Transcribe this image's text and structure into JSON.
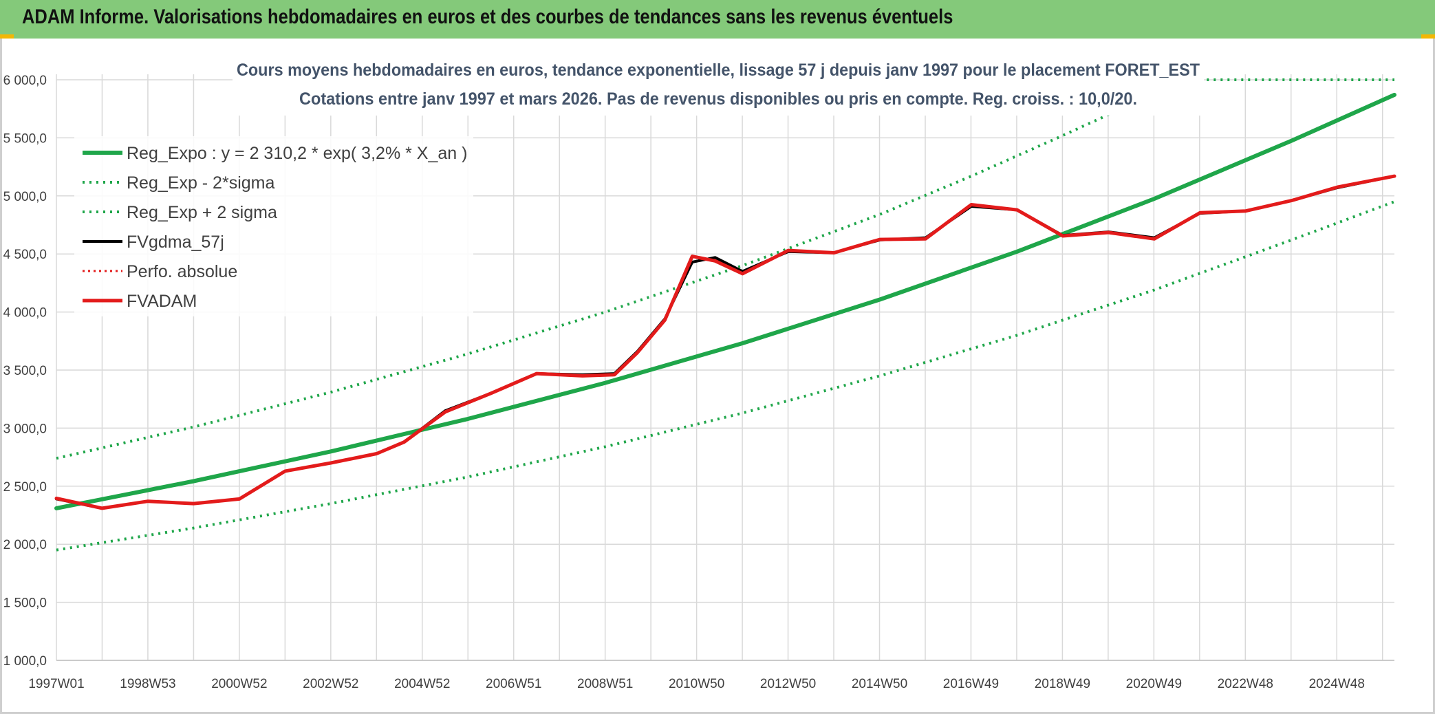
{
  "header": {
    "title": "ADAM Informe. Valorisations hebdomadaires en euros et des courbes de tendances sans les revenus éventuels"
  },
  "colors": {
    "header_bg": "#84c97a",
    "regression": "#1fa64a",
    "band": "#1fa64a",
    "fvgdma": "#000000",
    "perfo": "#e31b1b",
    "fvadam": "#e31b1b",
    "gridline": "#d9d9d9"
  },
  "chart_data": {
    "type": "line",
    "subtitle_line1": "Cours moyens hebdomadaires en euros, tendance exponentielle, lissage 57 j depuis janv 1997 pour le placement FORET_EST",
    "subtitle_line2": "Cotations entre janv 1997 et mars 2026. Pas de revenus disponibles ou pris en compte. Reg. croiss. : 10,0/20.",
    "ylim": [
      1000,
      6000
    ],
    "y_ticks": [
      "1 000,0",
      "1 500,0",
      "2 000,0",
      "2 500,0",
      "3 000,0",
      "3 500,0",
      "4 000,0",
      "4 500,0",
      "5 000,0",
      "5 500,0",
      "6 000,0"
    ],
    "x_ticks": [
      "1997W01",
      "1998W53",
      "2000W52",
      "2002W52",
      "2004W52",
      "2006W51",
      "2008W51",
      "2010W50",
      "2012W50",
      "2014W50",
      "2016W49",
      "2018W49",
      "2020W49",
      "2022W48",
      "2024W48"
    ],
    "x_range_years": [
      1997.0,
      2026.25
    ],
    "grid": true,
    "legend_position": "top-left",
    "series": [
      {
        "name": "Reg_Expo : y = 2 310,2 * exp( 3,2% *  X_an )",
        "style": "solid-thick",
        "x": [
          1997.0,
          2000.0,
          2003.0,
          2006.0,
          2009.0,
          2012.0,
          2015.0,
          2018.0,
          2021.0,
          2024.0,
          2026.25
        ],
        "values": [
          2310,
          2543,
          2799,
          3080,
          3390,
          3731,
          4107,
          4520,
          4975,
          5475,
          5870
        ]
      },
      {
        "name": "Reg_Exp - 2*sigma",
        "style": "dotted",
        "x": [
          1997.0,
          2000.0,
          2003.0,
          2006.0,
          2009.0,
          2012.0,
          2015.0,
          2018.0,
          2021.0,
          2024.0,
          2026.25
        ],
        "values": [
          1950,
          2140,
          2350,
          2580,
          2840,
          3130,
          3450,
          3800,
          4190,
          4620,
          4950
        ]
      },
      {
        "name": "Reg_Exp + 2 sigma",
        "style": "dotted",
        "x": [
          1997.0,
          2000.0,
          2003.0,
          2006.0,
          2009.0,
          2012.0,
          2015.0,
          2017.0,
          2019.0,
          2020.0,
          2021.2,
          2026.25
        ],
        "values": [
          2740,
          3010,
          3310,
          3640,
          4000,
          4400,
          4840,
          5170,
          5520,
          5700,
          6000,
          6000
        ]
      },
      {
        "name": "FVgdma_57j",
        "style": "solid-black",
        "x": [
          1997.0,
          1998.0,
          1999.0,
          2000.0,
          2001.0,
          2002.0,
          2003.0,
          2004.0,
          2004.6,
          2005.5,
          2006.5,
          2007.5,
          2008.5,
          2009.2,
          2009.7,
          2010.3,
          2010.9,
          2011.4,
          2012.0,
          2013.0,
          2014.0,
          2015.0,
          2016.0,
          2017.0,
          2018.0,
          2019.0,
          2020.0,
          2021.0,
          2022.0,
          2023.0,
          2024.0,
          2025.0,
          2026.25
        ],
        "values": [
          2390,
          2310,
          2370,
          2350,
          2390,
          2630,
          2700,
          2780,
          2880,
          3150,
          3300,
          3470,
          3460,
          3470,
          3660,
          3940,
          4430,
          4470,
          4350,
          4520,
          4510,
          4620,
          4640,
          4910,
          4880,
          4660,
          4690,
          4640,
          4850,
          4870,
          4960,
          5070,
          5170
        ]
      },
      {
        "name": "Perfo. absolue",
        "style": "dotted-red",
        "x": [],
        "values": []
      },
      {
        "name": "FVADAM",
        "style": "solid-thick-red",
        "x": [
          1997.0,
          1998.0,
          1999.0,
          2000.0,
          2001.0,
          2002.0,
          2003.0,
          2004.0,
          2004.6,
          2005.5,
          2006.5,
          2007.5,
          2008.5,
          2009.2,
          2009.7,
          2010.3,
          2010.9,
          2011.4,
          2012.0,
          2013.0,
          2014.0,
          2015.0,
          2016.0,
          2017.0,
          2018.0,
          2019.0,
          2020.0,
          2021.0,
          2022.0,
          2023.0,
          2024.0,
          2025.0,
          2026.25
        ],
        "values": [
          2395,
          2310,
          2370,
          2350,
          2390,
          2630,
          2700,
          2780,
          2880,
          3140,
          3300,
          3470,
          3450,
          3460,
          3650,
          3930,
          4480,
          4440,
          4330,
          4530,
          4510,
          4625,
          4630,
          4925,
          4880,
          4655,
          4685,
          4630,
          4855,
          4870,
          4960,
          5075,
          5170
        ]
      }
    ]
  }
}
